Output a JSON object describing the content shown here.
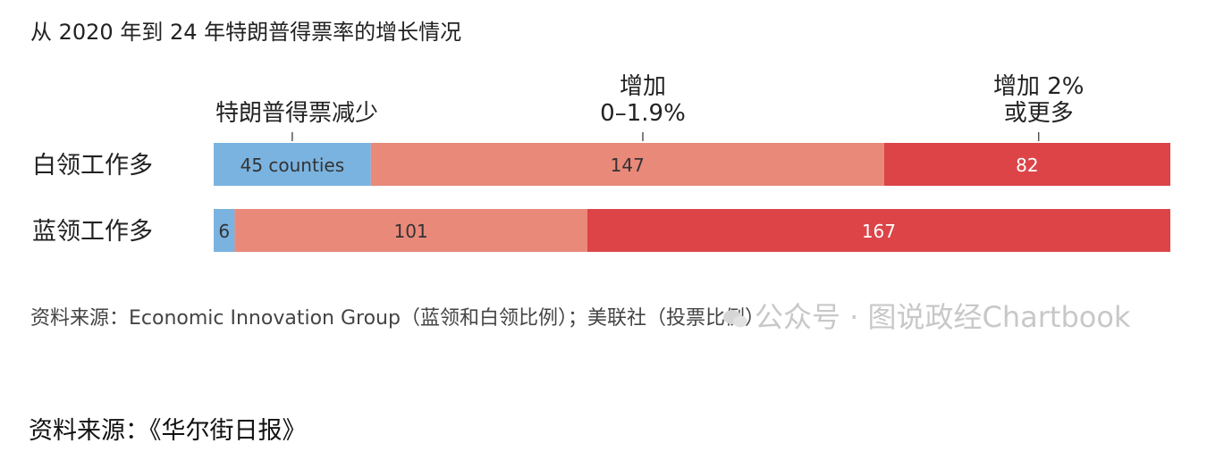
{
  "chart_data": {
    "type": "bar",
    "stacked": true,
    "orientation": "horizontal",
    "title": "从 2020 年到 24 年特朗普得票率的增长情况",
    "categories": [
      "白领工作多",
      "蓝领工作多"
    ],
    "series": [
      {
        "name": "特朗普得票减少",
        "values": [
          45,
          6
        ],
        "value_labels": [
          "45 counties",
          "6"
        ],
        "color": "#7ab3e0"
      },
      {
        "name": "增加 0–1.9%",
        "values": [
          147,
          101
        ],
        "value_labels": [
          "147",
          "101"
        ],
        "color": "#e9897a"
      },
      {
        "name": "增加 2% 或更多",
        "values": [
          82,
          167
        ],
        "value_labels": [
          "82",
          "167"
        ],
        "color": "#dc4448"
      }
    ],
    "legend_labels": [
      {
        "lines": [
          "特朗普得票减少"
        ]
      },
      {
        "lines": [
          "增加",
          "0–1.9%"
        ]
      },
      {
        "lines": [
          "增加 2%",
          "或更多"
        ]
      }
    ],
    "source_note": "资料来源：Economic Innovation Group（蓝领和白领比例）；美联社（投票比例）"
  },
  "watermark": "公众号 · 图说政经Chartbook",
  "page_source": "资料来源：《华尔街日报》"
}
